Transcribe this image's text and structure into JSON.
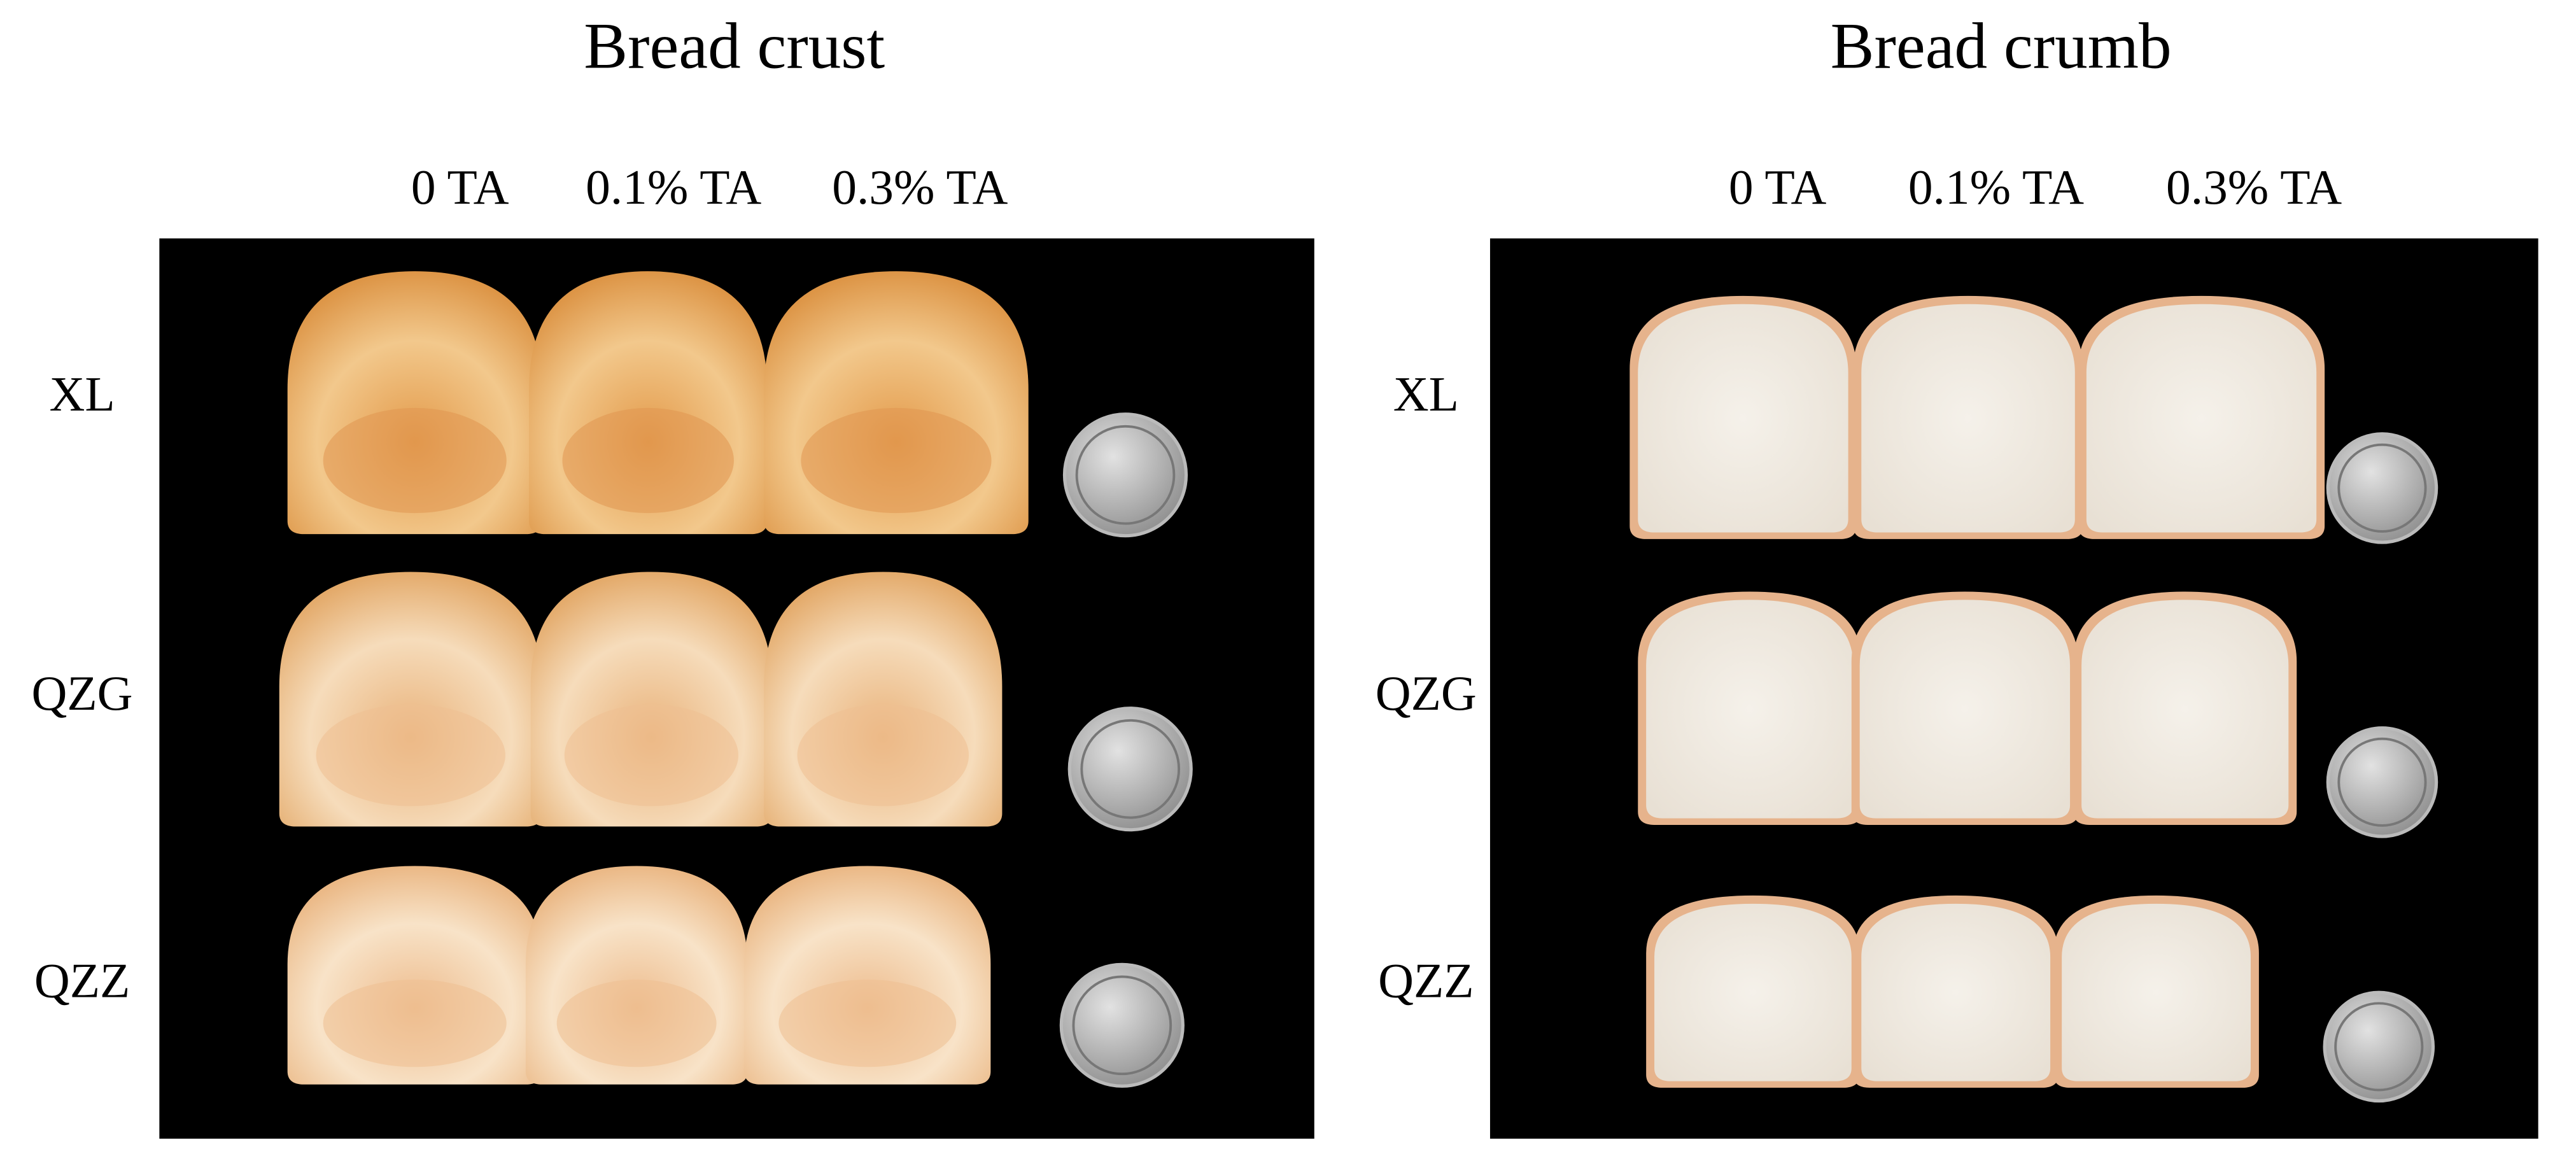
{
  "panels": [
    {
      "title": "Bread crust",
      "columns": [
        "0 TA",
        "0.1% TA",
        "0.3% TA"
      ],
      "rows": [
        "XL",
        "QZG",
        "QZZ"
      ]
    },
    {
      "title": "Bread crumb",
      "columns": [
        "0 TA",
        "0.1% TA",
        "0.3% TA"
      ],
      "rows": [
        "XL",
        "QZG",
        "QZZ"
      ]
    }
  ]
}
